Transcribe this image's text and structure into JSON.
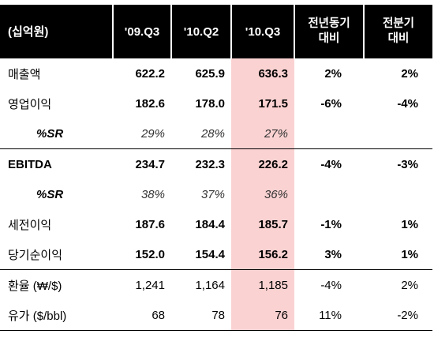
{
  "header": {
    "unit": "(십억원)",
    "col1": "'09.Q3",
    "col2": "'10.Q2",
    "col3": "'10.Q3",
    "col4_line1": "전년동기",
    "col4_line2": "대비",
    "col5_line1": "전분기",
    "col5_line2": "대비"
  },
  "rows": [
    {
      "label": "매출액",
      "v1": "622.2",
      "v2": "625.9",
      "v3": "636.3",
      "yoy": "2%",
      "qoq": "2%"
    },
    {
      "label": "영업이익",
      "v1": "182.6",
      "v2": "178.0",
      "v3": "171.5",
      "yoy": "-6%",
      "qoq": "-4%"
    },
    {
      "label": "%SR",
      "v1": "29%",
      "v2": "28%",
      "v3": "27%",
      "yoy": "",
      "qoq": ""
    },
    {
      "label": "EBITDA",
      "v1": "234.7",
      "v2": "232.3",
      "v3": "226.2",
      "yoy": "-4%",
      "qoq": "-3%"
    },
    {
      "label": "%SR",
      "v1": "38%",
      "v2": "37%",
      "v3": "36%",
      "yoy": "",
      "qoq": ""
    },
    {
      "label": "세전이익",
      "v1": "187.6",
      "v2": "184.4",
      "v3": "185.7",
      "yoy": "-1%",
      "qoq": "1%"
    },
    {
      "label": "당기순이익",
      "v1": "152.0",
      "v2": "154.4",
      "v3": "156.2",
      "yoy": "3%",
      "qoq": "1%"
    },
    {
      "label": "환율 (₩/$)",
      "v1": "1,241",
      "v2": "1,164",
      "v3": "1,185",
      "yoy": "-4%",
      "qoq": "2%"
    },
    {
      "label": "유가 ($/bbl)",
      "v1": "68",
      "v2": "78",
      "v3": "76",
      "yoy": "11%",
      "qoq": "-2%"
    }
  ],
  "colors": {
    "header_bg": "#000000",
    "highlight": "#fbd2d2"
  }
}
